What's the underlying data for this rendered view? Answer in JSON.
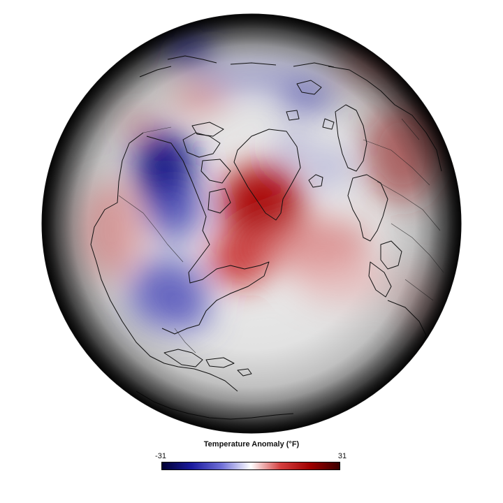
{
  "legend": {
    "title": "Temperature Anomaly (°F)",
    "min_label": "-31",
    "max_label": "31",
    "min_value": -31,
    "max_value": 31,
    "colors": [
      "#000033",
      "#1a1a9e",
      "#6e6ed6",
      "#ffffff",
      "#d44040",
      "#a00000",
      "#3a0000"
    ]
  },
  "map": {
    "projection": "orthographic",
    "center": "North Pole / North Atlantic",
    "coastlines": true,
    "national_borders": true
  }
}
